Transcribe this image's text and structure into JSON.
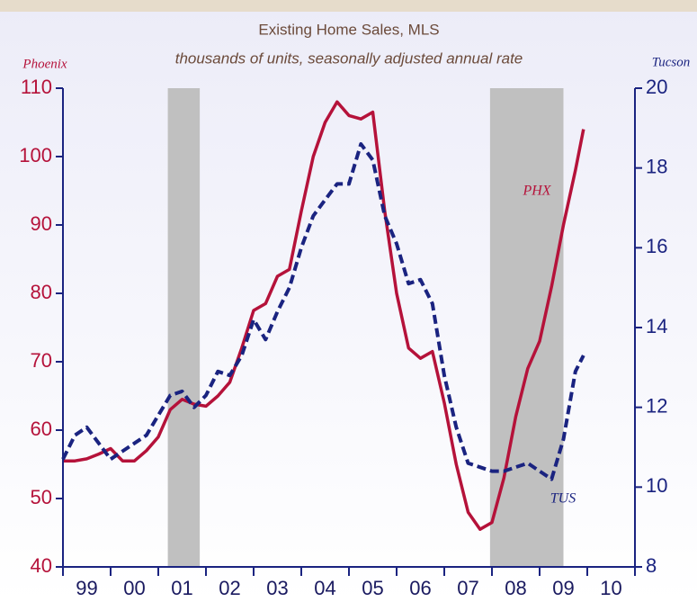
{
  "chart_data": {
    "type": "line",
    "title": "Existing Home Sales, MLS",
    "subtitle": "thousands of units, seasonally adjusted annual rate",
    "y_label": "Phoenix",
    "y2_label": "Tucson",
    "x": [
      1999.0,
      1999.25,
      1999.5,
      1999.75,
      2000.0,
      2000.25,
      2000.5,
      2000.75,
      2001.0,
      2001.25,
      2001.5,
      2001.75,
      2002.0,
      2002.25,
      2002.5,
      2002.75,
      2003.0,
      2003.25,
      2003.5,
      2003.75,
      2004.0,
      2004.25,
      2004.5,
      2004.75,
      2005.0,
      2005.25,
      2005.5,
      2005.75,
      2006.0,
      2006.25,
      2006.5,
      2006.75,
      2007.0,
      2007.25,
      2007.5,
      2007.75,
      2008.0,
      2008.25,
      2008.5,
      2008.75,
      2009.0,
      2009.25,
      2009.5,
      2009.75,
      2009.92
    ],
    "series": [
      {
        "name": "PHX",
        "color": "#b5123a",
        "axis": "y",
        "values": [
          55.5,
          55.5,
          55.8,
          56.5,
          57.3,
          55.5,
          55.5,
          57,
          59,
          63,
          64.5,
          63.8,
          63.5,
          65,
          67,
          72,
          77.5,
          78.5,
          82.5,
          83.5,
          92,
          100,
          105,
          108,
          106,
          105.5,
          106.5,
          92,
          80,
          72,
          70.5,
          71.5,
          64,
          55,
          48,
          45.5,
          46.5,
          53,
          62,
          69,
          73,
          81,
          90,
          98,
          104
        ]
      },
      {
        "name": "TUS",
        "color": "#1a2380",
        "axis": "y2",
        "values": [
          10.7,
          11.3,
          11.5,
          11.1,
          10.7,
          10.9,
          11.1,
          11.3,
          11.8,
          12.3,
          12.4,
          12.0,
          12.3,
          12.9,
          12.8,
          13.3,
          14.2,
          13.7,
          14.4,
          15.0,
          16.0,
          16.8,
          17.2,
          17.6,
          17.6,
          18.6,
          18.2,
          16.8,
          16.1,
          15.1,
          15.2,
          14.6,
          12.8,
          11.5,
          10.6,
          10.5,
          10.4,
          10.4,
          10.5,
          10.6,
          10.4,
          10.2,
          11.2,
          12.9,
          13.3
        ]
      }
    ],
    "xlim": [
      1999,
      2011
    ],
    "xticks": [
      {
        "value": 1999,
        "label": "99"
      },
      {
        "value": 2000,
        "label": "00"
      },
      {
        "value": 2001,
        "label": "01"
      },
      {
        "value": 2002,
        "label": "02"
      },
      {
        "value": 2003,
        "label": "03"
      },
      {
        "value": 2004,
        "label": "04"
      },
      {
        "value": 2005,
        "label": "05"
      },
      {
        "value": 2006,
        "label": "06"
      },
      {
        "value": 2007,
        "label": "07"
      },
      {
        "value": 2008,
        "label": "08"
      },
      {
        "value": 2009,
        "label": "09"
      },
      {
        "value": 2010,
        "label": "10"
      }
    ],
    "ylim": [
      40,
      110
    ],
    "yticks": [
      40,
      50,
      60,
      70,
      80,
      90,
      100,
      110
    ],
    "y2lim": [
      8,
      20
    ],
    "y2ticks": [
      8,
      10,
      12,
      14,
      16,
      18,
      20
    ],
    "shading": [
      [
        2001.2,
        2001.87
      ],
      [
        2007.96,
        2009.5
      ]
    ],
    "shading_color": "#c0c0c0"
  }
}
